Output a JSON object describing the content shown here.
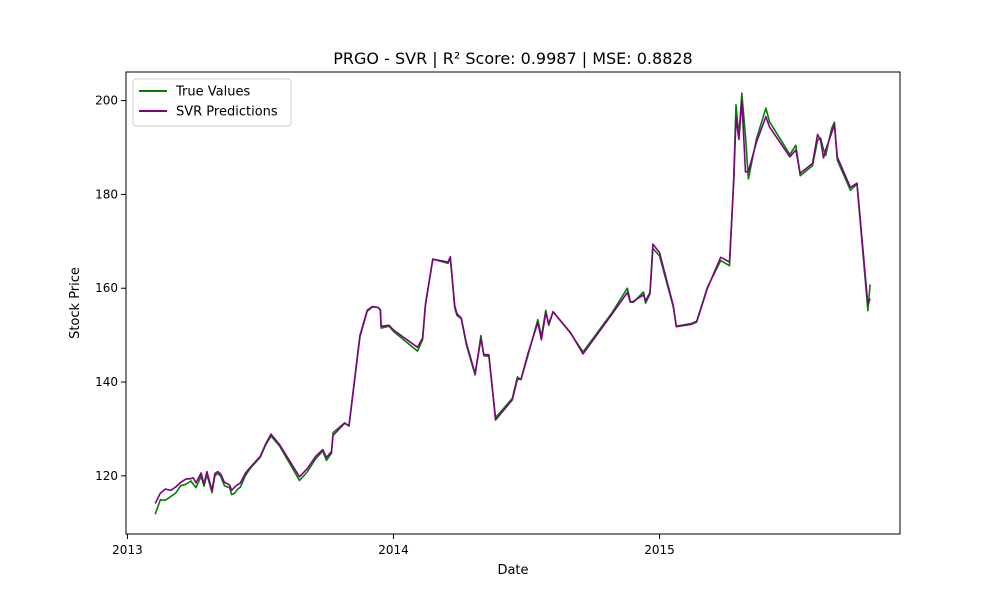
{
  "chart_data": {
    "type": "line",
    "title": "PRGO - SVR | R² Score: 0.9987 | MSE: 0.8828",
    "xlabel": "Date",
    "ylabel": "Stock Price",
    "x_ticks": [
      "2013",
      "2014",
      "2015"
    ],
    "x_tick_dates": [
      "2013-01-01",
      "2014-01-01",
      "2015-01-01"
    ],
    "y_ticks": [
      120,
      140,
      160,
      180,
      200
    ],
    "xlim": [
      "2012-12-30",
      "2015-11-27"
    ],
    "ylim": [
      107.6,
      206.1
    ],
    "grid": false,
    "legend_position": "upper left",
    "series": [
      {
        "name": "True Values",
        "color": "#008000",
        "points": [
          [
            "2013-02-08",
            111.8
          ],
          [
            "2013-02-15",
            114.9
          ],
          [
            "2013-02-22",
            114.8
          ],
          [
            "2013-03-08",
            116.3
          ],
          [
            "2013-03-15",
            117.9
          ],
          [
            "2013-03-22",
            118.2
          ],
          [
            "2013-03-29",
            118.9
          ],
          [
            "2013-04-05",
            117.5
          ],
          [
            "2013-04-12",
            119.9
          ],
          [
            "2013-04-16",
            117.8
          ],
          [
            "2013-04-20",
            120.3
          ],
          [
            "2013-04-27",
            116.4
          ],
          [
            "2013-05-01",
            120.0
          ],
          [
            "2013-05-05",
            120.5
          ],
          [
            "2013-05-09",
            119.9
          ],
          [
            "2013-05-14",
            117.9
          ],
          [
            "2013-05-21",
            117.5
          ],
          [
            "2013-05-24",
            116.0
          ],
          [
            "2013-05-28",
            116.3
          ],
          [
            "2013-06-01",
            117.1
          ],
          [
            "2013-06-05",
            117.6
          ],
          [
            "2013-06-12",
            120.1
          ],
          [
            "2013-06-19",
            121.7
          ],
          [
            "2013-07-02",
            123.9
          ],
          [
            "2013-07-10",
            126.7
          ],
          [
            "2013-07-17",
            128.5
          ],
          [
            "2013-07-29",
            126.3
          ],
          [
            "2013-08-25",
            119.0
          ],
          [
            "2013-09-05",
            120.9
          ],
          [
            "2013-09-16",
            123.6
          ],
          [
            "2013-09-26",
            125.3
          ],
          [
            "2013-10-01",
            123.3
          ],
          [
            "2013-10-08",
            124.8
          ],
          [
            "2013-10-10",
            129.2
          ],
          [
            "2013-10-26",
            131.3
          ],
          [
            "2013-11-01",
            130.6
          ],
          [
            "2013-11-16",
            149.6
          ],
          [
            "2013-11-26",
            155.1
          ],
          [
            "2013-12-03",
            156.0
          ],
          [
            "2013-12-11",
            155.9
          ],
          [
            "2013-12-14",
            155.4
          ],
          [
            "2013-12-15",
            151.5
          ],
          [
            "2013-12-26",
            151.9
          ],
          [
            "2014-01-01",
            150.8
          ],
          [
            "2014-02-03",
            146.6
          ],
          [
            "2014-02-10",
            149.0
          ],
          [
            "2014-02-14",
            156.5
          ],
          [
            "2014-02-24",
            166.2
          ],
          [
            "2014-03-17",
            165.3
          ],
          [
            "2014-03-20",
            166.6
          ],
          [
            "2014-03-26",
            155.9
          ],
          [
            "2014-03-29",
            154.2
          ],
          [
            "2014-04-04",
            153.5
          ],
          [
            "2014-04-11",
            147.9
          ],
          [
            "2014-04-23",
            141.5
          ],
          [
            "2014-05-01",
            149.9
          ],
          [
            "2014-05-05",
            145.6
          ],
          [
            "2014-05-12",
            145.5
          ],
          [
            "2014-05-21",
            132.4
          ],
          [
            "2014-06-13",
            136.5
          ],
          [
            "2014-06-20",
            141.1
          ],
          [
            "2014-06-25",
            140.5
          ],
          [
            "2014-07-04",
            145.4
          ],
          [
            "2014-07-18",
            153.3
          ],
          [
            "2014-07-23",
            149.7
          ],
          [
            "2014-07-29",
            155.3
          ],
          [
            "2014-08-02",
            152.1
          ],
          [
            "2014-08-08",
            155.0
          ],
          [
            "2014-09-01",
            150.4
          ],
          [
            "2014-09-18",
            146.4
          ],
          [
            "2014-10-28",
            154.8
          ],
          [
            "2014-11-18",
            160.0
          ],
          [
            "2014-11-22",
            157.2
          ],
          [
            "2014-11-26",
            157.0
          ],
          [
            "2014-12-10",
            159.2
          ],
          [
            "2014-12-13",
            156.8
          ],
          [
            "2014-12-19",
            158.8
          ],
          [
            "2014-12-23",
            168.5
          ],
          [
            "2015-01-01",
            166.9
          ],
          [
            "2015-01-20",
            156.0
          ],
          [
            "2015-01-24",
            151.9
          ],
          [
            "2015-02-14",
            152.5
          ],
          [
            "2015-02-21",
            153.0
          ],
          [
            "2015-03-08",
            160.3
          ],
          [
            "2015-03-26",
            165.9
          ],
          [
            "2015-04-07",
            164.8
          ],
          [
            "2015-04-13",
            183.8
          ],
          [
            "2015-04-16",
            199.1
          ],
          [
            "2015-04-20",
            192.4
          ],
          [
            "2015-04-24",
            201.6
          ],
          [
            "2015-04-29",
            192.4
          ],
          [
            "2015-05-03",
            183.3
          ],
          [
            "2015-05-14",
            191.8
          ],
          [
            "2015-05-27",
            198.4
          ],
          [
            "2015-06-01",
            195.5
          ],
          [
            "2015-06-29",
            188.5
          ],
          [
            "2015-07-07",
            190.5
          ],
          [
            "2015-07-13",
            184.0
          ],
          [
            "2015-07-30",
            186.1
          ],
          [
            "2015-08-06",
            191.6
          ],
          [
            "2015-08-10",
            192.0
          ],
          [
            "2015-08-14",
            189.6
          ],
          [
            "2015-08-17",
            188.3
          ],
          [
            "2015-08-25",
            194.0
          ],
          [
            "2015-08-29",
            195.4
          ],
          [
            "2015-09-02",
            187.3
          ],
          [
            "2015-09-20",
            180.9
          ],
          [
            "2015-09-29",
            182.2
          ],
          [
            "2015-10-14",
            155.2
          ],
          [
            "2015-10-17",
            160.8
          ]
        ]
      },
      {
        "name": "SVR Predictions",
        "color": "#800080",
        "points": [
          [
            "2013-02-08",
            114.1
          ],
          [
            "2013-02-15",
            116.3
          ],
          [
            "2013-02-22",
            117.2
          ],
          [
            "2013-03-01",
            116.9
          ],
          [
            "2013-03-08",
            117.6
          ],
          [
            "2013-03-15",
            118.6
          ],
          [
            "2013-03-22",
            119.3
          ],
          [
            "2013-03-29",
            119.4
          ],
          [
            "2013-04-01",
            119.6
          ],
          [
            "2013-04-05",
            118.5
          ],
          [
            "2013-04-12",
            120.6
          ],
          [
            "2013-04-16",
            118.2
          ],
          [
            "2013-04-20",
            120.9
          ],
          [
            "2013-04-27",
            116.9
          ],
          [
            "2013-05-01",
            120.5
          ],
          [
            "2013-05-05",
            120.9
          ],
          [
            "2013-05-09",
            120.4
          ],
          [
            "2013-05-14",
            118.6
          ],
          [
            "2013-05-21",
            118.1
          ],
          [
            "2013-05-24",
            116.9
          ],
          [
            "2013-05-28",
            117.6
          ],
          [
            "2013-06-01",
            118.1
          ],
          [
            "2013-06-05",
            118.5
          ],
          [
            "2013-06-12",
            120.6
          ],
          [
            "2013-06-19",
            121.9
          ],
          [
            "2013-07-02",
            124.1
          ],
          [
            "2013-07-10",
            126.9
          ],
          [
            "2013-07-17",
            128.9
          ],
          [
            "2013-07-29",
            126.6
          ],
          [
            "2013-08-25",
            119.8
          ],
          [
            "2013-09-05",
            121.6
          ],
          [
            "2013-09-16",
            124.1
          ],
          [
            "2013-09-26",
            125.6
          ],
          [
            "2013-10-01",
            123.9
          ],
          [
            "2013-10-08",
            125.2
          ],
          [
            "2013-10-10",
            128.6
          ],
          [
            "2013-10-26",
            131.2
          ],
          [
            "2013-11-01",
            130.7
          ],
          [
            "2013-11-16",
            149.9
          ],
          [
            "2013-11-26",
            155.3
          ],
          [
            "2013-12-03",
            156.1
          ],
          [
            "2013-12-11",
            155.9
          ],
          [
            "2013-12-14",
            155.3
          ],
          [
            "2013-12-15",
            151.9
          ],
          [
            "2013-12-26",
            152.1
          ],
          [
            "2014-01-01",
            151.1
          ],
          [
            "2014-02-03",
            147.4
          ],
          [
            "2014-02-10",
            149.4
          ],
          [
            "2014-02-14",
            156.7
          ],
          [
            "2014-02-24",
            166.2
          ],
          [
            "2014-03-17",
            165.6
          ],
          [
            "2014-03-20",
            166.7
          ],
          [
            "2014-03-26",
            156.3
          ],
          [
            "2014-03-29",
            154.6
          ],
          [
            "2014-04-04",
            153.6
          ],
          [
            "2014-04-11",
            148.3
          ],
          [
            "2014-04-23",
            141.8
          ],
          [
            "2014-05-01",
            149.2
          ],
          [
            "2014-05-05",
            145.9
          ],
          [
            "2014-05-12",
            145.8
          ],
          [
            "2014-05-21",
            131.9
          ],
          [
            "2014-06-13",
            136.2
          ],
          [
            "2014-06-20",
            140.6
          ],
          [
            "2014-06-25",
            140.6
          ],
          [
            "2014-07-04",
            145.8
          ],
          [
            "2014-07-18",
            152.7
          ],
          [
            "2014-07-23",
            149.0
          ],
          [
            "2014-07-29",
            154.8
          ],
          [
            "2014-08-02",
            152.4
          ],
          [
            "2014-08-08",
            155.0
          ],
          [
            "2014-09-01",
            150.5
          ],
          [
            "2014-09-18",
            146.0
          ],
          [
            "2014-10-28",
            154.5
          ],
          [
            "2014-11-18",
            159.1
          ],
          [
            "2014-11-22",
            157.0
          ],
          [
            "2014-11-26",
            157.2
          ],
          [
            "2014-12-10",
            158.6
          ],
          [
            "2014-12-13",
            157.3
          ],
          [
            "2014-12-19",
            159.1
          ],
          [
            "2014-12-23",
            169.4
          ],
          [
            "2015-01-01",
            167.6
          ],
          [
            "2015-01-20",
            156.3
          ],
          [
            "2015-01-24",
            151.8
          ],
          [
            "2015-02-14",
            152.3
          ],
          [
            "2015-02-21",
            152.8
          ],
          [
            "2015-03-08",
            160.1
          ],
          [
            "2015-03-26",
            166.6
          ],
          [
            "2015-04-07",
            165.6
          ],
          [
            "2015-04-13",
            183.0
          ],
          [
            "2015-04-16",
            196.4
          ],
          [
            "2015-04-20",
            191.7
          ],
          [
            "2015-04-24",
            200.1
          ],
          [
            "2015-04-29",
            184.8
          ],
          [
            "2015-05-03",
            184.9
          ],
          [
            "2015-05-14",
            191.1
          ],
          [
            "2015-05-27",
            196.6
          ],
          [
            "2015-06-01",
            194.4
          ],
          [
            "2015-06-29",
            188.0
          ],
          [
            "2015-07-07",
            189.5
          ],
          [
            "2015-07-13",
            184.5
          ],
          [
            "2015-07-30",
            186.6
          ],
          [
            "2015-08-06",
            192.8
          ],
          [
            "2015-08-10",
            191.5
          ],
          [
            "2015-08-14",
            187.8
          ],
          [
            "2015-08-17",
            189.5
          ],
          [
            "2015-08-25",
            193.0
          ],
          [
            "2015-08-29",
            194.9
          ],
          [
            "2015-09-02",
            188.0
          ],
          [
            "2015-09-20",
            181.5
          ],
          [
            "2015-09-29",
            182.4
          ],
          [
            "2015-10-14",
            156.5
          ],
          [
            "2015-10-17",
            157.8
          ]
        ]
      }
    ]
  }
}
